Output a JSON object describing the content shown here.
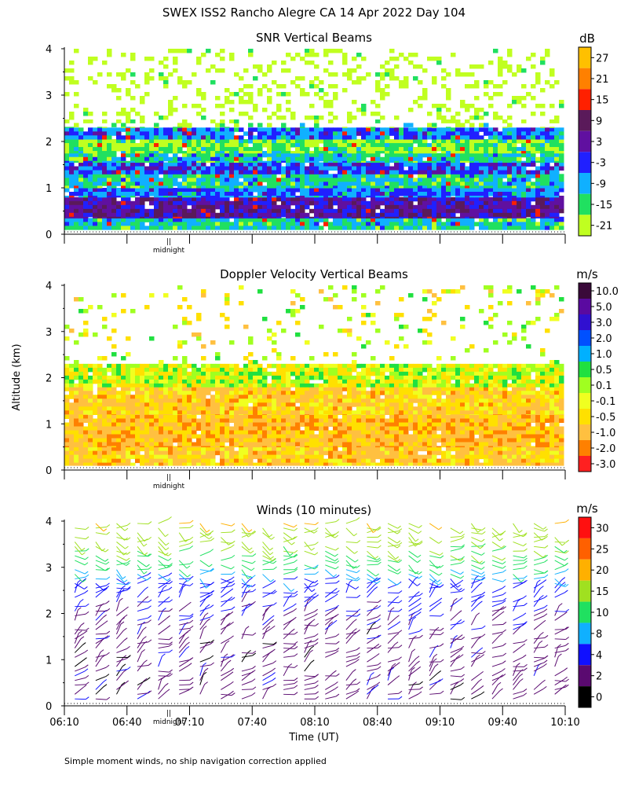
{
  "title": "SWEX ISS2 Rancho Alegre CA  14 Apr 2022 Day 104",
  "ylabel": "Altitude (km)",
  "xlabel": "Time (UT)",
  "footnote": "Simple moment winds, no ship navigation correction applied",
  "midnight_label": "midnight",
  "midnight_marker": "||",
  "chart_data": [
    {
      "type": "heatmap",
      "title": "SNR Vertical Beams",
      "colorbar_unit": "dB",
      "colorbar_ticks": [
        "27",
        "21",
        "15",
        "9",
        "3",
        "-3",
        "-9",
        "-15",
        "-21"
      ],
      "colorbar_colors": [
        "#ffc000",
        "#ff8000",
        "#ff2000",
        "#5a1a5a",
        "#6010a0",
        "#2020ff",
        "#10b0ff",
        "#20e060",
        "#c0ff20"
      ],
      "yticks": [
        "0",
        "1",
        "2",
        "3",
        "4"
      ],
      "ylim": [
        0,
        4
      ],
      "xlim": [
        "06:10",
        "10:10"
      ],
      "layers_km": [
        {
          "from": 0.1,
          "to": 0.35,
          "value": -9
        },
        {
          "from": 0.35,
          "to": 0.8,
          "value": 6
        },
        {
          "from": 0.8,
          "to": 1.0,
          "value": -3
        },
        {
          "from": 1.0,
          "to": 1.3,
          "value": -9
        },
        {
          "from": 1.3,
          "to": 1.55,
          "value": 0
        },
        {
          "from": 1.55,
          "to": 1.75,
          "value": -9
        },
        {
          "from": 1.75,
          "to": 2.05,
          "value": -15
        },
        {
          "from": 2.05,
          "to": 2.3,
          "value": -3
        },
        {
          "from": 2.3,
          "to": 2.4,
          "value": -15
        },
        {
          "from": 2.4,
          "to": 4.0,
          "value": -21
        }
      ]
    },
    {
      "type": "heatmap",
      "title": "Doppler Velocity Vertical Beams",
      "colorbar_unit": "m/s",
      "colorbar_ticks": [
        "10.0",
        "5.0",
        "3.0",
        "2.0",
        "1.0",
        "0.5",
        "0.1",
        "-0.1",
        "-0.5",
        "-1.0",
        "-2.0",
        "-3.0"
      ],
      "colorbar_colors": [
        "#3a0a3a",
        "#5a0aa0",
        "#3010d0",
        "#0050ff",
        "#00b0ff",
        "#20e040",
        "#a0ff20",
        "#f0ff20",
        "#ffe000",
        "#ffc040",
        "#ff8000",
        "#ff2020"
      ],
      "yticks": [
        "0",
        "1",
        "2",
        "3",
        "4"
      ],
      "ylim": [
        0,
        4
      ],
      "xlim": [
        "06:10",
        "10:10"
      ],
      "layers_km": [
        {
          "from": 0.1,
          "to": 0.5,
          "value": -0.5
        },
        {
          "from": 0.5,
          "to": 1.2,
          "value": -0.7
        },
        {
          "from": 1.2,
          "to": 1.8,
          "value": -0.5
        },
        {
          "from": 1.8,
          "to": 2.3,
          "value": 0.1
        },
        {
          "from": 2.3,
          "to": 4.0,
          "value": 0.0
        }
      ]
    },
    {
      "type": "scatter",
      "title": "Winds (10 minutes)",
      "colorbar_unit": "m/s",
      "colorbar_ticks": [
        "30",
        "25",
        "20",
        "15",
        "10",
        "8",
        "4",
        "2",
        "0"
      ],
      "colorbar_colors": [
        "#ff1010",
        "#ff6000",
        "#ffb000",
        "#a0e020",
        "#20e060",
        "#10b0ff",
        "#1010ff",
        "#5a0a70",
        "#000000"
      ],
      "yticks": [
        "0",
        "1",
        "2",
        "3",
        "4"
      ],
      "xticks": [
        "06:10",
        "06:40",
        "07:10",
        "07:40",
        "08:10",
        "08:40",
        "09:10",
        "09:40",
        "10:10"
      ],
      "ylim": [
        0,
        4
      ],
      "xlim": [
        "06:10",
        "10:10"
      ],
      "profile_interval_min": 10,
      "speed_by_height": [
        {
          "height_km": 0.5,
          "speed_ms": 3
        },
        {
          "height_km": 1.0,
          "speed_ms": 3
        },
        {
          "height_km": 1.5,
          "speed_ms": 3
        },
        {
          "height_km": 2.0,
          "speed_ms": 4
        },
        {
          "height_km": 2.5,
          "speed_ms": 6
        },
        {
          "height_km": 2.8,
          "speed_ms": 9
        },
        {
          "height_km": 3.2,
          "speed_ms": 14
        },
        {
          "height_km": 3.6,
          "speed_ms": 17
        },
        {
          "height_km": 4.0,
          "speed_ms": 20
        }
      ]
    }
  ]
}
